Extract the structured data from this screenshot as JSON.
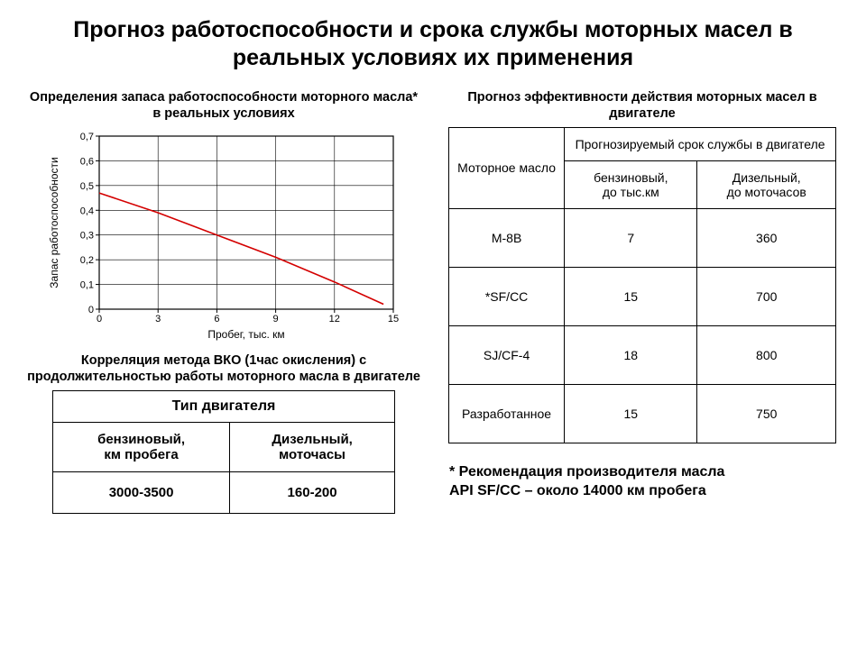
{
  "title": "Прогноз работоспособности и срока службы моторных масел в реальных условиях их применения",
  "left": {
    "chart_title": "Определения запаса работоспособности моторного масла* в реальных условиях",
    "chart": {
      "type": "line",
      "x_label": "Пробег, тыс. км",
      "y_label": "Запас работоспособности",
      "x_ticks": [
        0,
        3,
        6,
        9,
        12,
        15
      ],
      "y_ticks": [
        0,
        0.1,
        0.2,
        0.3,
        0.4,
        0.5,
        0.6,
        0.7
      ],
      "y_tick_labels": [
        "0",
        "0,1",
        "0,2",
        "0,3",
        "0,4",
        "0,5",
        "0,6",
        "0,7"
      ],
      "xlim": [
        0,
        15
      ],
      "ylim": [
        0,
        0.7
      ],
      "line_color": "#d40000",
      "line_width": 1.6,
      "grid_color": "#000000",
      "background_color": "#ffffff",
      "plot_border_color": "#000000",
      "axis_font_size": 11,
      "label_font_size": 12,
      "series": {
        "x": [
          0,
          3,
          6,
          9,
          12,
          14.5
        ],
        "y": [
          0.47,
          0.39,
          0.3,
          0.21,
          0.11,
          0.02
        ]
      }
    },
    "corr_title": "Корреляция метода ВКО (1час окисления) с продолжительностью работы моторного масла в двигателе",
    "table": {
      "header": "Тип двигателя",
      "col1": "бензиновый,\nкм пробега",
      "col2": "Дизельный,\nмоточасы",
      "val1": "3000-3500",
      "val2": "160-200"
    }
  },
  "right": {
    "title": "Прогноз эффективности действия моторных масел в двигателе",
    "table": {
      "row_header": "Моторное масло",
      "span_header": "Прогнозируемый срок службы в двигателе",
      "col1": "бензиновый,\nдо тыс.км",
      "col2": "Дизельный,\nдо моточасов",
      "rows": [
        {
          "name": "М-8В",
          "v1": "7",
          "v2": "360"
        },
        {
          "name": "*SF/CC",
          "v1": "15",
          "v2": "700"
        },
        {
          "name": "SJ/CF-4",
          "v1": "18",
          "v2": "800"
        },
        {
          "name": "Разработанное",
          "v1": "15",
          "v2": "750"
        }
      ]
    },
    "footnote": "* Рекомендация производителя масла\nAPI SF/CC – около 14000 км пробега"
  }
}
